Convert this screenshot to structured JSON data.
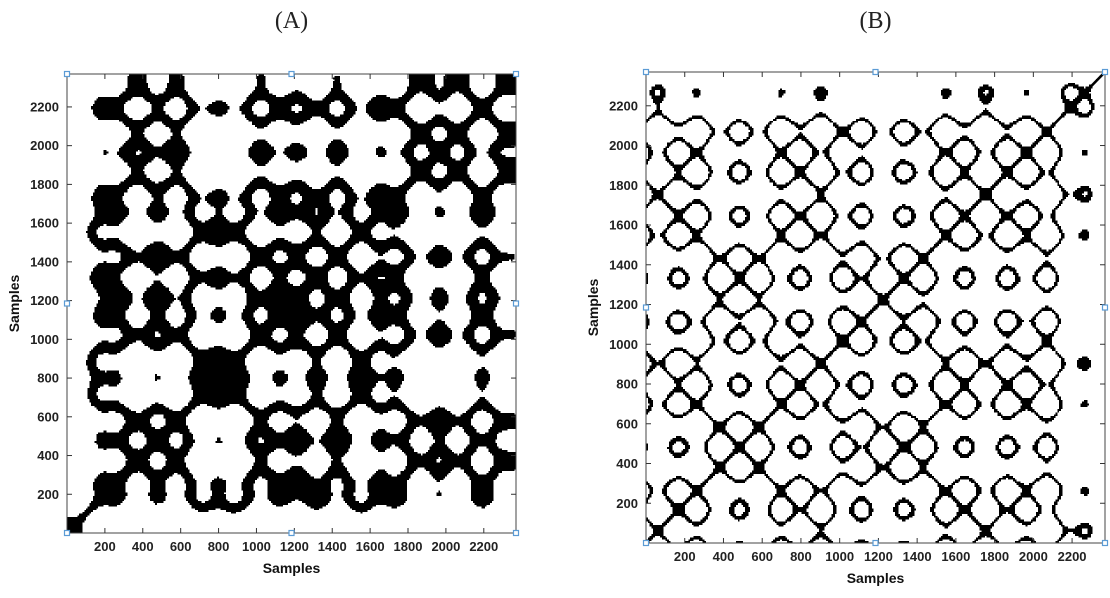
{
  "chart_data": [
    {
      "type": "heatmap",
      "panel_label": "(A)",
      "title": "",
      "xlabel": "Samples",
      "ylabel": "Samples",
      "xlim": [
        0,
        2370
      ],
      "ylim": [
        0,
        2370
      ],
      "xticks": [
        "200",
        "400",
        "600",
        "800",
        "1000",
        "1200",
        "1400",
        "1600",
        "1800",
        "2000",
        "2200"
      ],
      "yticks": [
        "200",
        "400",
        "600",
        "800",
        "1000",
        "1200",
        "1400",
        "1600",
        "1800",
        "2000",
        "2200"
      ],
      "xtick_values": [
        200,
        400,
        600,
        800,
        1000,
        1200,
        1400,
        1600,
        1800,
        2000,
        2200
      ],
      "ytick_values": [
        200,
        400,
        600,
        800,
        1000,
        1200,
        1400,
        1600,
        1800,
        2000,
        2200
      ],
      "colors": {
        "recurrence": "#000000",
        "background": "#ffffff",
        "frame": "#444444",
        "marker": "#5b9bd5"
      }
    },
    {
      "type": "heatmap",
      "panel_label": "(B)",
      "title": "",
      "xlabel": "Samples",
      "ylabel": "Samples",
      "xlim": [
        0,
        2370
      ],
      "ylim": [
        0,
        2370
      ],
      "xticks": [
        "200",
        "400",
        "600",
        "800",
        "1000",
        "1200",
        "1400",
        "1600",
        "1800",
        "2000",
        "2200"
      ],
      "yticks": [
        "200",
        "400",
        "600",
        "800",
        "1000",
        "1200",
        "1400",
        "1600",
        "1800",
        "2000",
        "2200"
      ],
      "xtick_values": [
        200,
        400,
        600,
        800,
        1000,
        1200,
        1400,
        1600,
        1800,
        2000,
        2200
      ],
      "ytick_values": [
        200,
        400,
        600,
        800,
        1000,
        1200,
        1400,
        1600,
        1800,
        2000,
        2200
      ],
      "colors": {
        "recurrence": "#000000",
        "background": "#ffffff",
        "frame": "#444444",
        "marker": "#5b9bd5"
      }
    }
  ]
}
